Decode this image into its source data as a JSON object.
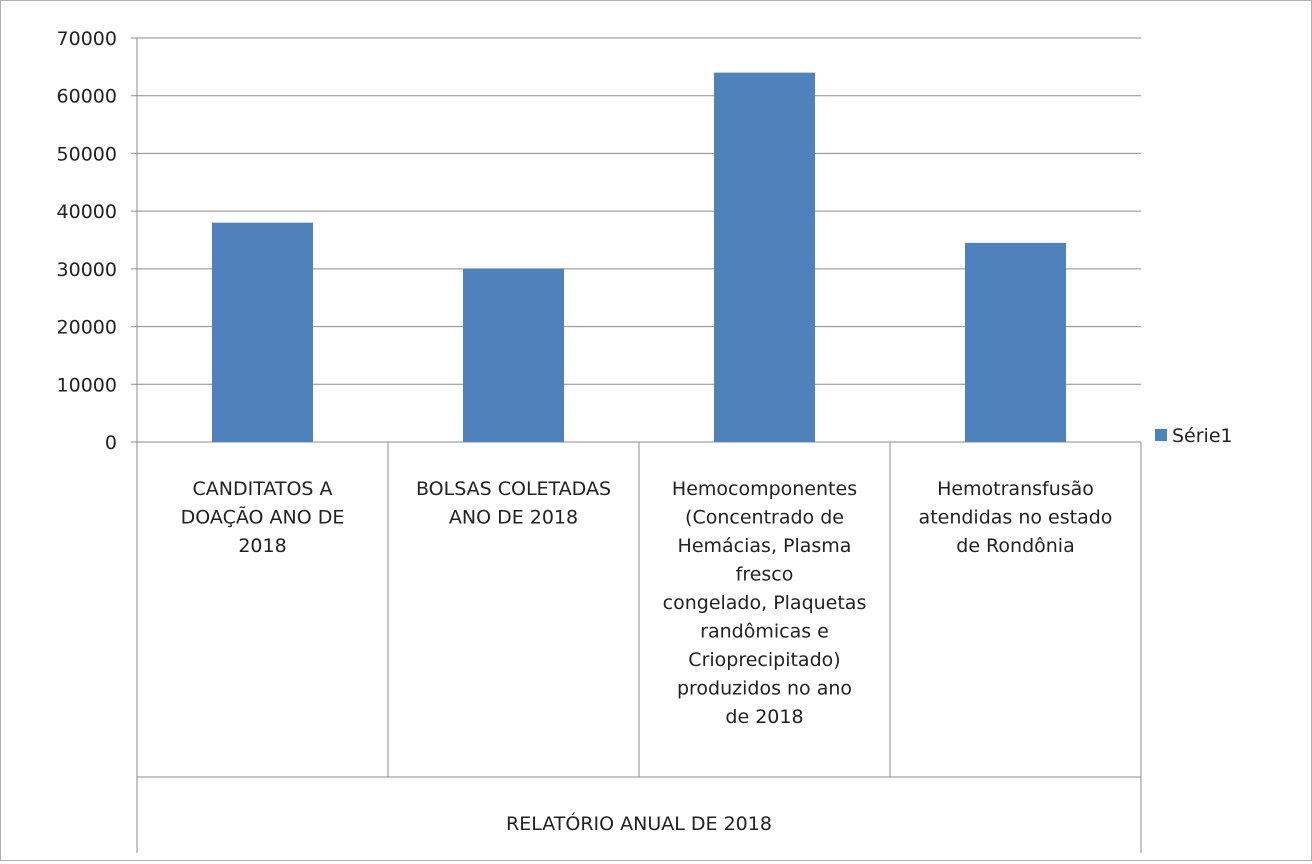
{
  "chart_data": {
    "type": "bar",
    "categories": [
      [
        "CANDITATOS A",
        "DOAÇÃO ANO DE",
        "2018"
      ],
      [
        "BOLSAS COLETADAS",
        "ANO DE 2018"
      ],
      [
        "Hemocomponentes",
        "(Concentrado de",
        "Hemácias, Plasma",
        "fresco",
        "congelado, Plaquetas",
        "randômicas e",
        "Crioprecipitado)",
        "produzidos no ano",
        "de 2018"
      ],
      [
        "Hemotransfusão",
        "atendidas no estado",
        "de Rondônia"
      ]
    ],
    "group_label": "RELATÓRIO ANUAL DE 2018",
    "series": [
      {
        "name": "Série1",
        "values": [
          38000,
          30000,
          64000,
          34500
        ]
      }
    ],
    "ylim": [
      0,
      70000
    ],
    "yticks": [
      "0",
      "10000",
      "20000",
      "30000",
      "40000",
      "50000",
      "60000",
      "70000"
    ],
    "grid": true,
    "legend": "right",
    "colors": {
      "bar": "#4f81bd",
      "grid": "#8c8c8c",
      "axis": "#8c8c8c"
    }
  }
}
